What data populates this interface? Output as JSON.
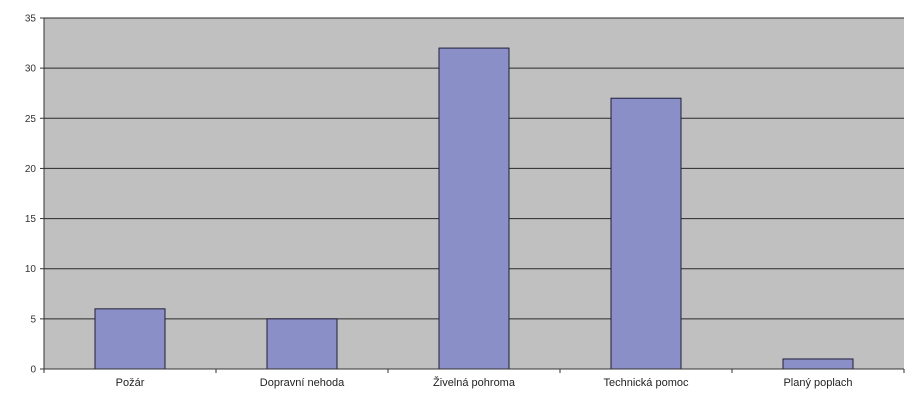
{
  "chart_data": {
    "type": "bar",
    "categories": [
      "Požár",
      "Dopravní nehoda",
      "Živelná pohroma",
      "Technická pomoc",
      "Planý poplach"
    ],
    "values": [
      6,
      5,
      32,
      27,
      1
    ],
    "ylim": [
      0,
      35
    ],
    "yticks": [
      0,
      5,
      10,
      15,
      20,
      25,
      30,
      35
    ],
    "grid": true,
    "legend": "none",
    "colors": {
      "plot_background": "#c0c0c0",
      "bar_fill": "#8b8fc8",
      "bar_stroke": "#1f1f3a",
      "gridline": "#2a2a2a"
    }
  }
}
